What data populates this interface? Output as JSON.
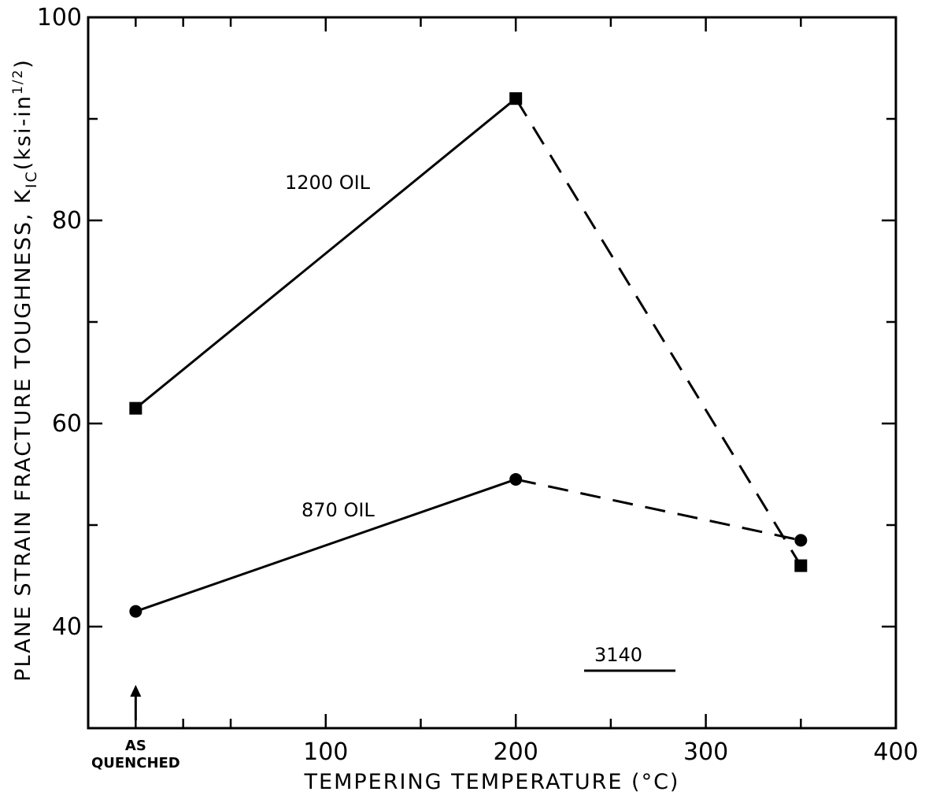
{
  "chart_data": {
    "type": "line",
    "xlabel": "TEMPERING TEMPERATURE (°C)",
    "ylabel": "PLANE STRAIN FRACTURE TOUGHNESS, K",
    "ylabel_sub": "IC",
    "ylabel_units": "(ksi-in",
    "ylabel_sup": "1/2",
    "ylabel_close": ")",
    "xlim": [
      -25,
      400
    ],
    "ylim": [
      30,
      100
    ],
    "x_ticks": [
      100,
      200,
      300,
      400
    ],
    "x_minor_ticks": [
      0,
      25,
      50,
      150,
      250,
      350
    ],
    "y_ticks": [
      40,
      60,
      80,
      100
    ],
    "y_minor_ticks": [
      50,
      70,
      90
    ],
    "as_quenched_label": [
      "AS",
      "QUENCHED"
    ],
    "as_quenched_x": 0,
    "series": [
      {
        "name": "1200 OIL",
        "marker": "square",
        "x": [
          0,
          200,
          350
        ],
        "y": [
          61.5,
          92,
          46
        ],
        "segment_styles": [
          "solid",
          "dashed"
        ]
      },
      {
        "name": "870 OIL",
        "marker": "circle",
        "x": [
          0,
          200,
          350
        ],
        "y": [
          41.5,
          54.5,
          48.5
        ],
        "segment_styles": [
          "solid",
          "dashed"
        ]
      }
    ],
    "annotations": {
      "steel_grade": "3140"
    }
  }
}
